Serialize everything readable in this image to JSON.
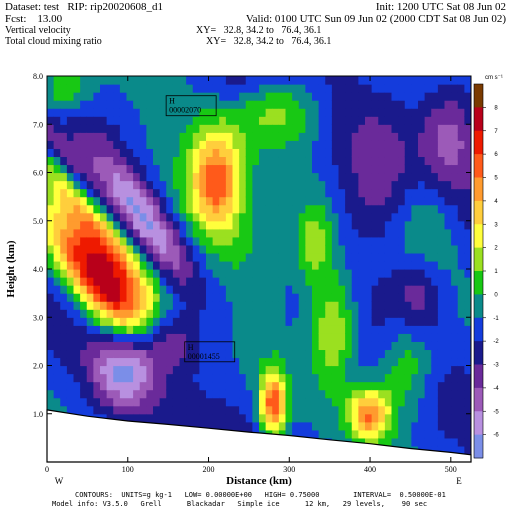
{
  "header": {
    "dataset": "Dataset: test   RIP: rip20020608_d1",
    "init": "Init: 1200 UTC Sat 08 Jun 02",
    "fcst": "Fcst:    13.00",
    "valid": "Valid: 0100 UTC Sun 09 Jun 02 (2000 CDT Sat 08 Jun 02)",
    "field1": "Vertical velocity",
    "field1_xy": "XY=   32.8, 34.2 to   76.4, 36.1",
    "field2": "Total cloud mixing ratio",
    "field2_xy": "XY=   32.8, 34.2 to   76.4, 36.1"
  },
  "footer": {
    "line1": "CONTOURS:  UNITS=g kg-1   LOW= 0.00000E+00   HIGH= 0.75000        INTERVAL=  0.50000E-01",
    "line2": "Model info: V3.5.0   Grell      Blackadar   Simple ice      12 km,   29 levels,    90 sec"
  },
  "chart_data": {
    "type": "heatmap",
    "title": "",
    "xlabel": "Distance (km)",
    "ylabel": "Height (km)",
    "xlim": [
      0,
      525
    ],
    "ylim": [
      0,
      8.0
    ],
    "x_ticks": [
      0,
      100,
      200,
      300,
      400,
      500
    ],
    "y_ticks": [
      1.0,
      2.0,
      3.0,
      4.0,
      5.0,
      6.0,
      7.0,
      8.0
    ],
    "x_tick_labels": [
      "0",
      "100",
      "200",
      "300",
      "400",
      "500"
    ],
    "y_tick_labels": [
      "1.0",
      "2.0",
      "3.0",
      "4.0",
      "5.0",
      "6.0",
      "7.0",
      "8.0"
    ],
    "endpoint_left": "W",
    "endpoint_right": "E",
    "colorbar_unit": "cm s⁻¹",
    "colorbar_labels": [
      "8",
      "7",
      "6",
      "5",
      "4",
      "3",
      "2",
      "1",
      "0",
      "-1",
      "-2",
      "-3",
      "-4",
      "-5",
      "-6"
    ],
    "colorbar_colors": [
      "#7a3a00",
      "#b8001a",
      "#ee1a00",
      "#ff5a1a",
      "#ff9b2e",
      "#ffce3c",
      "#ffff3c",
      "#9be020",
      "#18c814",
      "#0a8a8a",
      "#143cdc",
      "#1a1a8c",
      "#6a2a9a",
      "#9c5ab8",
      "#b890e0",
      "#7b8ee8"
    ],
    "annotations": [
      {
        "label": "H",
        "value": "00002070",
        "x": 150,
        "y": 7.55
      },
      {
        "label": "H",
        "value": "00001455",
        "x": 173,
        "y": 2.45
      }
    ],
    "terrain_height_km": {
      "x": [
        0,
        50,
        100,
        150,
        200,
        250,
        300,
        350,
        400,
        450,
        500,
        525
      ],
      "y": [
        1.08,
        0.95,
        0.85,
        0.78,
        0.7,
        0.62,
        0.55,
        0.46,
        0.38,
        0.28,
        0.2,
        0.15
      ]
    },
    "features": [
      {
        "x": 60,
        "y": 4.0,
        "value": 6,
        "sx": 30,
        "sy": 0.9,
        "slope": -0.022
      },
      {
        "x": 50,
        "y": 5.3,
        "value": 5,
        "sx": 22,
        "sy": 1.2,
        "slope": -0.022
      },
      {
        "x": 85,
        "y": 3.2,
        "value": 4,
        "sx": 30,
        "sy": 0.9,
        "slope": -0.02
      },
      {
        "x": 210,
        "y": 5.9,
        "value": 6,
        "sx": 22,
        "sy": 0.7,
        "slope": 0
      },
      {
        "x": 210,
        "y": 5.0,
        "value": 3,
        "sx": 45,
        "sy": 1.3,
        "slope": -0.015
      },
      {
        "x": 280,
        "y": 1.2,
        "value": 7,
        "sx": 12,
        "sy": 0.5,
        "slope": 0
      },
      {
        "x": 400,
        "y": 1.0,
        "value": 6,
        "sx": 18,
        "sy": 0.4,
        "slope": 0
      },
      {
        "x": 330,
        "y": 4.5,
        "value": 3,
        "sx": 18,
        "sy": 0.6,
        "slope": 0
      },
      {
        "x": 355,
        "y": 2.8,
        "value": 4,
        "sx": 20,
        "sy": 0.8,
        "slope": 0
      },
      {
        "x": 445,
        "y": 2.0,
        "value": 3,
        "sx": 25,
        "sy": 0.7,
        "slope": 0
      },
      {
        "x": 470,
        "y": 5.0,
        "value": 2,
        "sx": 30,
        "sy": 1.0,
        "slope": 0
      },
      {
        "x": 290,
        "y": 7.3,
        "value": 3,
        "sx": 40,
        "sy": 0.5,
        "slope": 0
      },
      {
        "x": 20,
        "y": 7.7,
        "value": 3,
        "sx": 25,
        "sy": 0.4,
        "slope": 0
      },
      {
        "x": 120,
        "y": 5.0,
        "value": -5,
        "sx": 25,
        "sy": 1.0,
        "slope": -0.02
      },
      {
        "x": 25,
        "y": 6.2,
        "value": -4,
        "sx": 14,
        "sy": 0.9,
        "slope": -0.02
      },
      {
        "x": 145,
        "y": 2.5,
        "value": -4,
        "sx": 30,
        "sy": 0.5,
        "slope": 0
      },
      {
        "x": 95,
        "y": 1.9,
        "value": -4,
        "sx": 28,
        "sy": 0.6,
        "slope": 0
      },
      {
        "x": 500,
        "y": 6.8,
        "value": -3,
        "sx": 25,
        "sy": 0.8,
        "slope": 0
      },
      {
        "x": 460,
        "y": 3.5,
        "value": -3,
        "sx": 25,
        "sy": 0.6,
        "slope": 0
      },
      {
        "x": 405,
        "y": 5.5,
        "value": -2,
        "sx": 35,
        "sy": 1.0,
        "slope": 0
      },
      {
        "x": 230,
        "y": 7.8,
        "value": -1,
        "sx": 30,
        "sy": 0.4,
        "slope": 0
      }
    ]
  }
}
